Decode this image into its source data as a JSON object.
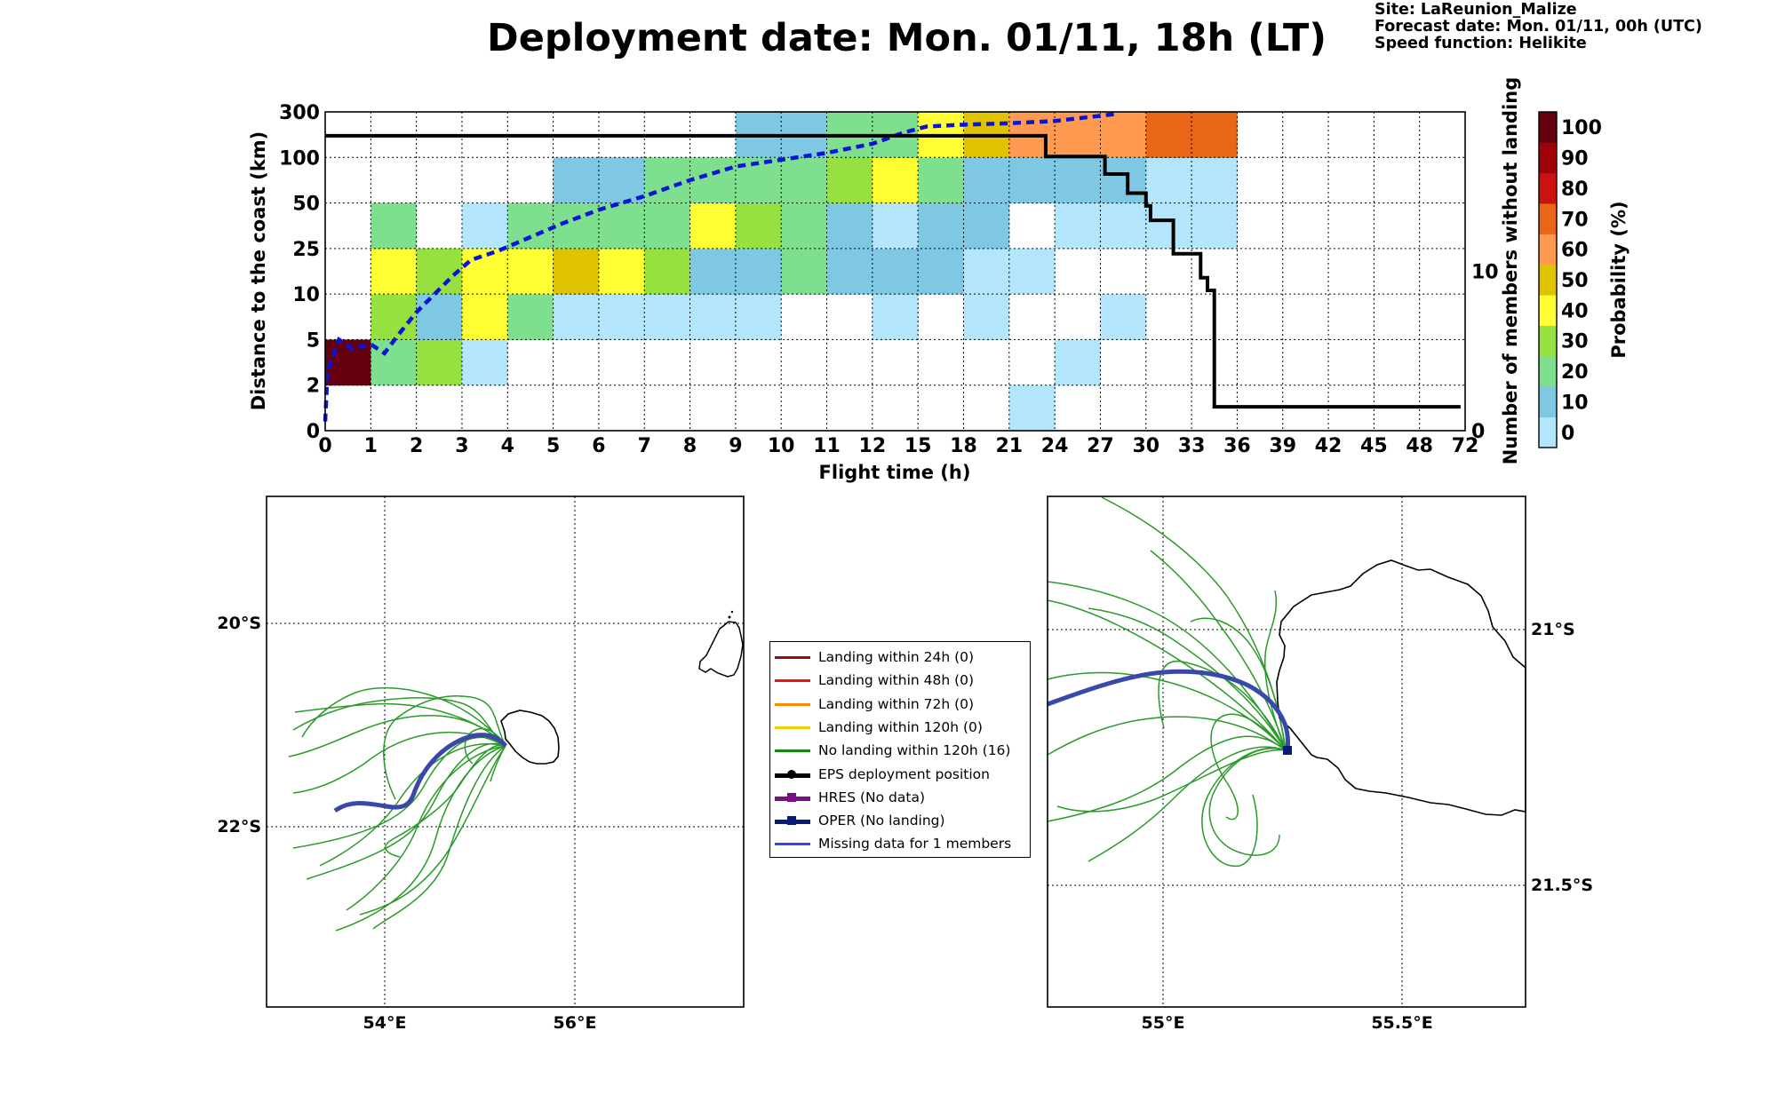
{
  "header": {
    "title": "Deployment date: Mon. 01/11, 18h (LT)",
    "site": "Site: LaReunion_Malize",
    "forecast": "Forecast date: Mon. 01/11, 00h (UTC)",
    "speed": "Speed function: Helikite"
  },
  "chart_data": [
    {
      "type": "heatmap",
      "xlabel": "Flight time (h)",
      "ylabel": "Distance to the coast (km)",
      "y2label": "Number of members without landing",
      "colorbar_label": "Probability (%)",
      "x_ticks": [
        "0",
        "1",
        "2",
        "3",
        "4",
        "5",
        "6",
        "7",
        "8",
        "9",
        "10",
        "11",
        "12",
        "15",
        "18",
        "21",
        "24",
        "27",
        "30",
        "33",
        "36",
        "39",
        "42",
        "45",
        "48",
        "72"
      ],
      "y_ticks": [
        "0",
        "2",
        "5",
        "10",
        "25",
        "50",
        "100",
        "300"
      ],
      "y2_ticks": [
        "0",
        "10"
      ],
      "y2_range": [
        0,
        20
      ],
      "colorbar_ticks": [
        "0",
        "10",
        "20",
        "30",
        "40",
        "50",
        "60",
        "70",
        "80",
        "90",
        "100"
      ],
      "colorbar_colors": [
        "#b3e5fc",
        "#7ec8e3",
        "#7ee08e",
        "#96e040",
        "#ffff33",
        "#e0c300",
        "#ff9a50",
        "#e96618",
        "#cc1111",
        "#a00008",
        "#640010"
      ],
      "cells": [
        [
          0,
          1,
          10
        ],
        [
          1,
          1,
          2
        ],
        [
          1,
          2,
          3
        ],
        [
          1,
          3,
          4
        ],
        [
          1,
          4,
          2
        ],
        [
          2,
          1,
          3
        ],
        [
          2,
          2,
          1
        ],
        [
          2,
          3,
          3
        ],
        [
          3,
          1,
          0
        ],
        [
          3,
          2,
          4
        ],
        [
          3,
          3,
          4
        ],
        [
          3,
          4,
          0
        ],
        [
          4,
          2,
          2
        ],
        [
          4,
          3,
          4
        ],
        [
          4,
          4,
          2
        ],
        [
          5,
          2,
          0
        ],
        [
          5,
          3,
          5
        ],
        [
          5,
          4,
          2
        ],
        [
          5,
          5,
          1
        ],
        [
          6,
          2,
          0
        ],
        [
          6,
          3,
          4
        ],
        [
          6,
          4,
          2
        ],
        [
          6,
          5,
          1
        ],
        [
          7,
          2,
          0
        ],
        [
          7,
          3,
          3
        ],
        [
          7,
          4,
          2
        ],
        [
          7,
          5,
          2
        ],
        [
          8,
          2,
          0
        ],
        [
          8,
          3,
          1
        ],
        [
          8,
          4,
          4
        ],
        [
          8,
          5,
          2
        ],
        [
          9,
          2,
          0
        ],
        [
          9,
          3,
          1
        ],
        [
          9,
          4,
          3
        ],
        [
          9,
          5,
          2
        ],
        [
          9,
          6,
          1
        ],
        [
          10,
          3,
          2
        ],
        [
          10,
          4,
          2
        ],
        [
          10,
          5,
          2
        ],
        [
          10,
          6,
          1
        ],
        [
          11,
          3,
          1
        ],
        [
          11,
          4,
          1
        ],
        [
          11,
          5,
          3
        ],
        [
          11,
          6,
          2
        ],
        [
          12,
          2,
          0
        ],
        [
          12,
          3,
          1
        ],
        [
          12,
          4,
          0
        ],
        [
          12,
          5,
          4
        ],
        [
          12,
          6,
          2
        ],
        [
          13,
          3,
          1
        ],
        [
          13,
          4,
          1
        ],
        [
          13,
          5,
          2
        ],
        [
          13,
          6,
          4
        ],
        [
          14,
          2,
          0
        ],
        [
          14,
          3,
          0
        ],
        [
          14,
          4,
          1
        ],
        [
          14,
          5,
          1
        ],
        [
          14,
          6,
          5
        ],
        [
          15,
          0,
          0
        ],
        [
          15,
          3,
          0
        ],
        [
          15,
          5,
          1
        ],
        [
          15,
          6,
          6
        ],
        [
          16,
          1,
          0
        ],
        [
          16,
          4,
          0
        ],
        [
          16,
          5,
          1
        ],
        [
          16,
          6,
          6
        ],
        [
          17,
          2,
          0
        ],
        [
          17,
          4,
          0
        ],
        [
          17,
          5,
          1
        ],
        [
          17,
          6,
          6
        ],
        [
          18,
          4,
          0
        ],
        [
          18,
          5,
          0
        ],
        [
          18,
          6,
          7
        ],
        [
          19,
          4,
          0
        ],
        [
          19,
          5,
          0
        ],
        [
          19,
          6,
          7
        ]
      ],
      "oper_distance_curve": [
        [
          0,
          0.2
        ],
        [
          0.05,
          1.3
        ],
        [
          0.3,
          2.0
        ],
        [
          0.6,
          1.8
        ],
        [
          1.0,
          1.9
        ],
        [
          1.3,
          1.7
        ],
        [
          1.6,
          2.1
        ],
        [
          2.0,
          2.6
        ],
        [
          2.4,
          3.0
        ],
        [
          2.8,
          3.4
        ],
        [
          3.2,
          3.75
        ],
        [
          3.8,
          3.95
        ],
        [
          4.5,
          4.25
        ],
        [
          5.2,
          4.55
        ],
        [
          6.0,
          4.85
        ],
        [
          7.0,
          5.15
        ],
        [
          8.0,
          5.5
        ],
        [
          9.0,
          5.8
        ],
        [
          10.0,
          5.95
        ],
        [
          11.0,
          6.1
        ],
        [
          12.0,
          6.3
        ],
        [
          12.7,
          6.55
        ],
        [
          13.2,
          6.68
        ],
        [
          14.0,
          6.72
        ],
        [
          15.0,
          6.75
        ],
        [
          16.0,
          6.8
        ],
        [
          17.3,
          6.95
        ],
        [
          17.3,
          7.0
        ]
      ],
      "members_without_landing": [
        [
          0,
          18.5
        ],
        [
          15.8,
          18.5
        ],
        [
          15.8,
          17.2
        ],
        [
          17.1,
          17.2
        ],
        [
          17.1,
          16.1
        ],
        [
          17.6,
          16.1
        ],
        [
          17.6,
          14.9
        ],
        [
          18.0,
          14.9
        ],
        [
          18.0,
          14.1
        ],
        [
          18.1,
          14.1
        ],
        [
          18.1,
          13.2
        ],
        [
          18.6,
          13.2
        ],
        [
          18.6,
          11.1
        ],
        [
          19.2,
          11.1
        ],
        [
          19.2,
          9.6
        ],
        [
          19.35,
          9.6
        ],
        [
          19.35,
          8.8
        ],
        [
          19.5,
          8.8
        ],
        [
          19.5,
          1.5
        ],
        [
          24.9,
          1.5
        ]
      ]
    },
    {
      "type": "scatter",
      "x_ticks": [
        "54°E",
        "56°E"
      ],
      "y_ticks": [
        "20°S",
        "22°S"
      ]
    },
    {
      "type": "scatter",
      "x_ticks": [
        "55°E",
        "55.5°E"
      ],
      "y_ticks": [
        "21°S",
        "21.5°S"
      ]
    }
  ],
  "legend": {
    "items": [
      {
        "label": "Landing within 24h (0)",
        "color": "#8b1010",
        "marker": "none"
      },
      {
        "label": "Landing within 48h (0)",
        "color": "#ee1111",
        "marker": "none"
      },
      {
        "label": "Landing within 72h (0)",
        "color": "#ff8800",
        "marker": "none"
      },
      {
        "label": "Landing within 120h (0)",
        "color": "#f0d000",
        "marker": "none"
      },
      {
        "label": "No landing within 120h (16)",
        "color": "#118811",
        "marker": "none"
      },
      {
        "label": "EPS deployment position",
        "color": "#000000",
        "marker": "circle"
      },
      {
        "label": "HRES (No data)",
        "color": "#7a1080",
        "marker": "square"
      },
      {
        "label": "OPER (No landing)",
        "color": "#0a1a7a",
        "marker": "square"
      },
      {
        "label": "Missing data for 1 members",
        "color": "#3344ee",
        "marker": "none"
      }
    ]
  }
}
